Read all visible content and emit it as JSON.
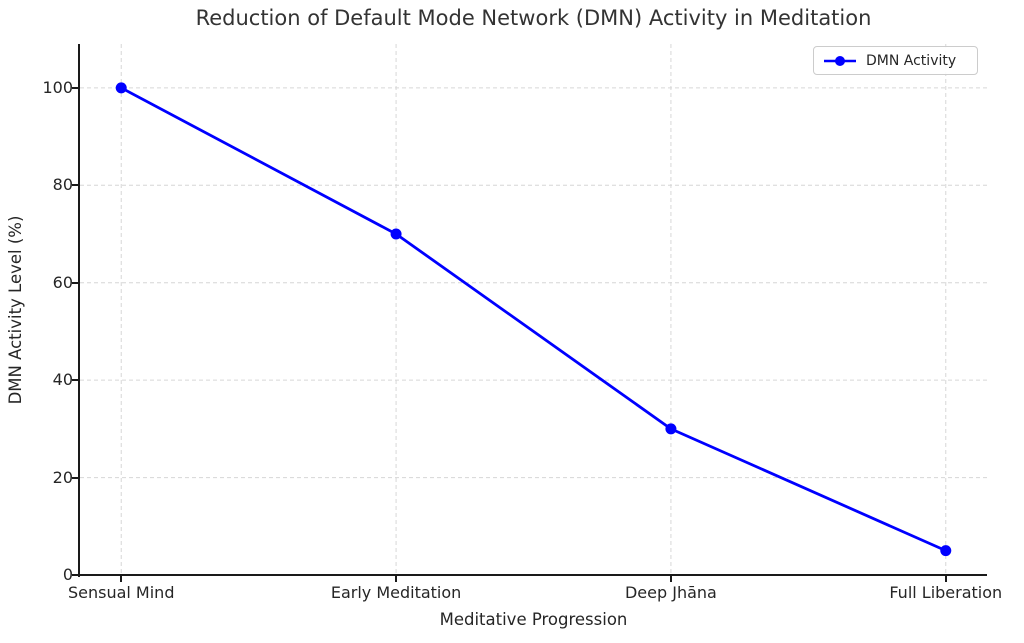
{
  "window": {
    "title": "Reduction of Default Mode Network (DMN) Activity in Meditation"
  },
  "chart_data": {
    "type": "line",
    "title": "Reduction of Default Mode Network (DMN) Activity in Meditation",
    "xlabel": "Meditative Progression",
    "ylabel": "DMN Activity Level (%)",
    "categories": [
      "Sensual Mind",
      "Early Meditation",
      "Deep Jhāna",
      "Full Liberation"
    ],
    "series": [
      {
        "name": "DMN Activity",
        "values": [
          100,
          70,
          30,
          5
        ],
        "color": "#0000ff",
        "marker": "circle"
      }
    ],
    "yticks": [
      0,
      20,
      40,
      60,
      80,
      100
    ],
    "ylim": [
      0,
      109
    ],
    "xlim": [
      -0.15,
      3.15
    ],
    "grid": "dashed",
    "legend": {
      "position": "upper right",
      "entries": [
        "DMN Activity"
      ]
    },
    "colors": {
      "line": "#0000ff",
      "grid": "#d6d6d6",
      "spine": "#1a1a1a",
      "text": "#262626",
      "legend_border": "#cccccc",
      "background": "#ffffff"
    }
  }
}
